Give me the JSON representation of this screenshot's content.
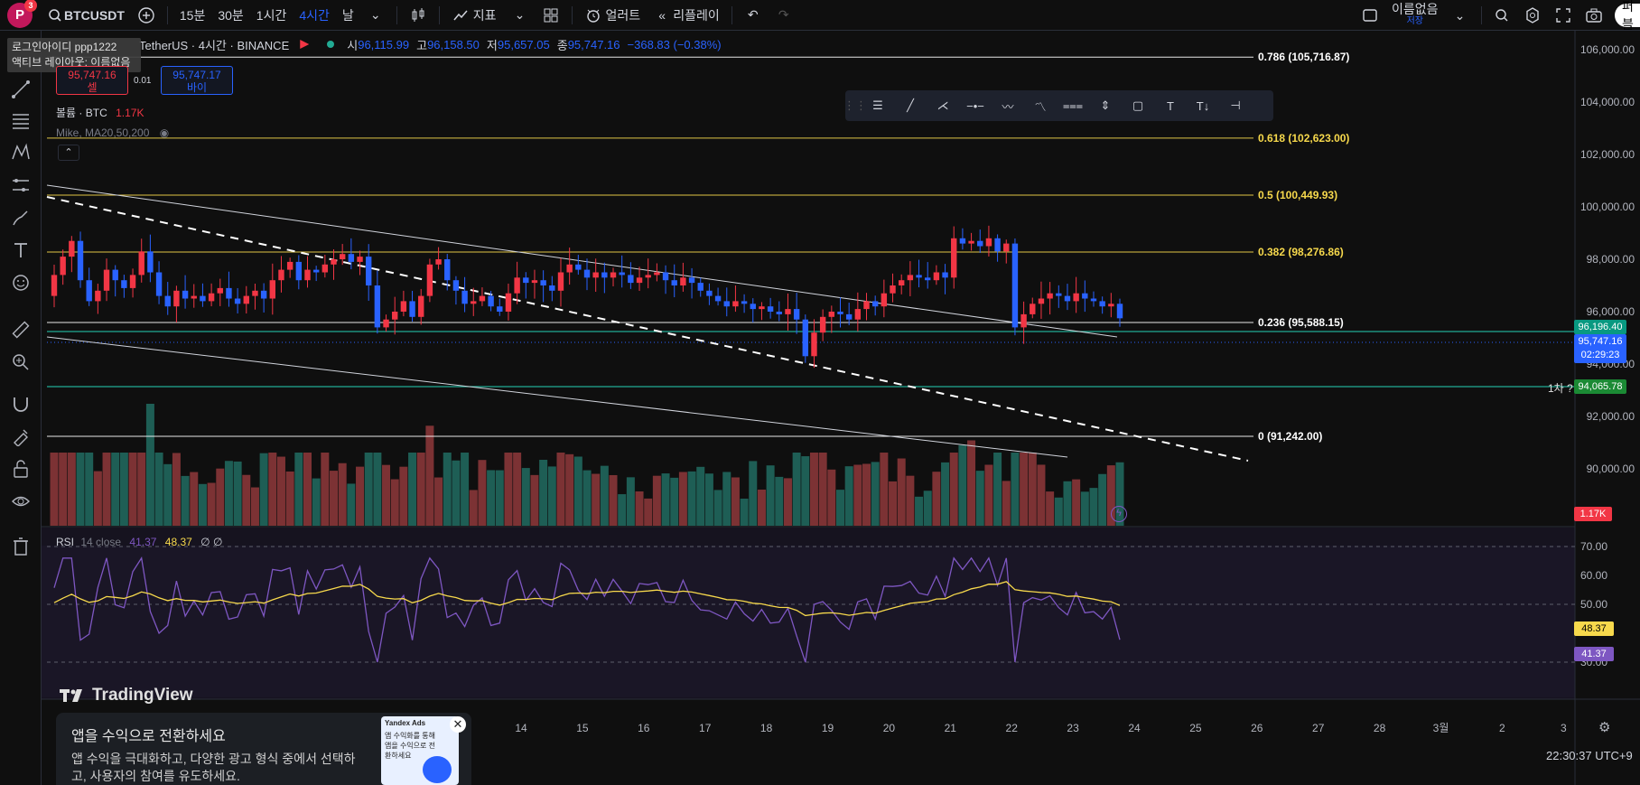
{
  "toolbar": {
    "avatar_letter": "P",
    "notif_count": "3",
    "symbol": "BTCUSDT",
    "intervals": [
      "15분",
      "30분",
      "1시간",
      "4시간",
      "날"
    ],
    "active_interval": "4시간",
    "indicators_label": "지표",
    "alert_label": "얼러트",
    "replay_label": "리플레이",
    "layout_name": "이름없음",
    "layout_sub": "저장",
    "publish_label": "퍼블"
  },
  "login_popup": {
    "line1": "로그인아이디 ppp1222",
    "line2": "액티브 레이아웃: 이름없음"
  },
  "legend": {
    "title": "TetherUS · 4시간 · BINANCE",
    "o_label": "시",
    "o": "96,115.99",
    "h_label": "고",
    "h": "96,158.50",
    "l_label": "저",
    "l": "95,657.05",
    "c_label": "종",
    "c": "95,747.16",
    "change": "−368.83 (−0.38%)",
    "colors": {
      "down": "#f23645",
      "up": "#2962ff"
    }
  },
  "trade": {
    "sell_price": "95,747.16",
    "sell_label": "셀",
    "spread": "0.01",
    "buy_price": "95,747.17",
    "buy_label": "바이"
  },
  "volume_legend": {
    "label": "볼륨 · BTC",
    "value": "1.17K"
  },
  "ma_legend": {
    "label": "Mike, MA20,50,200"
  },
  "rsi_legend": {
    "label": "RSI",
    "params": "14 close",
    "v1": "41.37",
    "v2": "48.37",
    "extra": "∅ ∅"
  },
  "fib_levels": [
    {
      "label": "0.786 (105,716.87)",
      "price": 105716.87,
      "color": "#ffffff"
    },
    {
      "label": "0.618 (102,623.00)",
      "price": 102623.0,
      "color": "#f7d94c"
    },
    {
      "label": "0.5 (100,449.93)",
      "price": 100449.93,
      "color": "#f7d94c"
    },
    {
      "label": "0.382 (98,276.86)",
      "price": 98276.86,
      "color": "#f7d94c"
    },
    {
      "label": "0.236 (95,588.15)",
      "price": 95588.15,
      "color": "#ffffff"
    },
    {
      "label": "0 (91,242.00)",
      "price": 91242.0,
      "color": "#ffffff"
    }
  ],
  "price_axis": {
    "ticks": [
      "106,000.00",
      "104,000.00",
      "102,000.00",
      "100,000.00",
      "98,000.00",
      "96,000.00",
      "94,000.00",
      "92,000.00",
      "90,000.00"
    ],
    "tick_values": [
      106000,
      104000,
      102000,
      100000,
      98000,
      96000,
      94000,
      92000,
      90000
    ],
    "green_line_price": "96,196.40",
    "last_price": "95,747.16",
    "countdown": "02:29:23",
    "support_price": "94,065.78",
    "support_note": "1차 ?",
    "volume_tag": "1.17K"
  },
  "rsi_axis": {
    "ticks": [
      "70.00",
      "60.00",
      "50.00",
      "30.00"
    ],
    "tick_values": [
      70,
      60,
      50,
      30
    ],
    "ma_tag": "48.37",
    "rsi_tag": "41.37"
  },
  "time_axis": [
    "14",
    "15",
    "16",
    "17",
    "18",
    "19",
    "20",
    "21",
    "22",
    "23",
    "24",
    "25",
    "26",
    "27",
    "28",
    "3월",
    "2",
    "3"
  ],
  "brand": "TradingView",
  "ad": {
    "title": "앱을 수익으로 전환하세요",
    "desc": "앱 수익을 극대화하고, 다양한 광고 형식 중에서 선택하고, 사용자의 참여를 유도하세요.",
    "thumb_title": "Yandex Ads",
    "thumb_text": "앱 수익화를 통해 앱을 수익으로 전환하세요"
  },
  "clock": "22:30:37 UTC+9",
  "chart_data": {
    "type": "candlestick",
    "title": "TetherUS · 4시간 · BINANCE",
    "y_range": [
      89000,
      107000
    ],
    "closes": [
      97400,
      98100,
      98700,
      97200,
      96400,
      96800,
      97600,
      97200,
      96900,
      97400,
      98300,
      97500,
      96600,
      96200,
      96800,
      96500,
      96600,
      96400,
      96700,
      96900,
      96500,
      96300,
      96600,
      96800,
      96500,
      97200,
      97600,
      97900,
      97200,
      97600,
      97500,
      97800,
      98000,
      98200,
      97900,
      98100,
      97000,
      95400,
      95700,
      96000,
      96400,
      95800,
      96600,
      97800,
      98000,
      97200,
      96800,
      96300,
      96400,
      96600,
      96200,
      96000,
      96700,
      97300,
      97100,
      97200,
      97000,
      96800,
      97500,
      97800,
      97600,
      97300,
      97500,
      97300,
      97500,
      97400,
      97100,
      97300,
      97400,
      97500,
      97200,
      97000,
      97300,
      97100,
      96800,
      96600,
      96400,
      96200,
      96400,
      96300,
      96100,
      96200,
      96000,
      95900,
      96100,
      95700,
      94300,
      95200,
      95800,
      96000,
      95900,
      95700,
      96100,
      96400,
      96200,
      96700,
      97000,
      97200,
      97400,
      97300,
      97200,
      97500,
      97300,
      98800,
      98600,
      98700,
      98500,
      98800,
      98300,
      98600,
      95400,
      95900,
      96300,
      96500,
      96700,
      96600,
      96400,
      96700,
      96500,
      96400,
      96200,
      96300,
      95747
    ]
  }
}
